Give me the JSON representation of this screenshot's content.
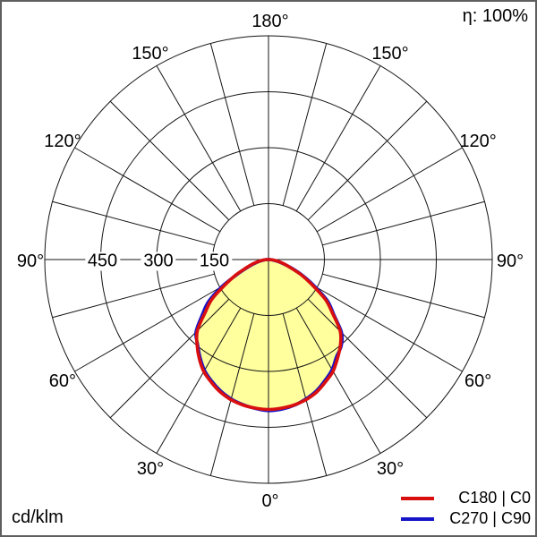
{
  "meta": {
    "efficiency_label": "η: 100%",
    "unit_label": "cd/klm"
  },
  "legend": [
    {
      "label": "C180 | C0",
      "color": "#d90f0f"
    },
    {
      "label": "C270 | C90",
      "color": "#1414c8"
    }
  ],
  "chart_data": {
    "type": "line",
    "subtype": "polar-photometric-distribution",
    "unit": "cd/klm",
    "efficiency_percent": 100,
    "grid": {
      "spoke_step_deg": 15,
      "rings": [
        150,
        300,
        450,
        600
      ],
      "grid_color": "#141414"
    },
    "radial_ticks": [
      {
        "value": 150,
        "label": "150"
      },
      {
        "value": 300,
        "label": "300"
      },
      {
        "value": 450,
        "label": "450"
      }
    ],
    "radial_max": 600,
    "angle_labels": [
      {
        "deg": 0,
        "label": "0°"
      },
      {
        "deg": 30,
        "label": "30°"
      },
      {
        "deg": 60,
        "label": "60°"
      },
      {
        "deg": 90,
        "label": "90°"
      },
      {
        "deg": 120,
        "label": "120°"
      },
      {
        "deg": 150,
        "label": "150°"
      },
      {
        "deg": 180,
        "label": "180°"
      }
    ],
    "fill_color": "#ffff9e",
    "gamma_deg": [
      -90,
      -85,
      -80,
      -75,
      -70,
      -65,
      -60,
      -55,
      -50,
      -45,
      -40,
      -35,
      -30,
      -25,
      -20,
      -15,
      -10,
      -5,
      0,
      5,
      10,
      15,
      20,
      25,
      30,
      35,
      40,
      45,
      50,
      55,
      60,
      65,
      70,
      75,
      80,
      85,
      90
    ],
    "series": [
      {
        "name": "C180 | C0",
        "color": "#d90f0f",
        "values": [
          5,
          14,
          26,
          42,
          62,
          95,
          133,
          185,
          222,
          270,
          298,
          324,
          347,
          363,
          378,
          389,
          396,
          400,
          402,
          400,
          396,
          389,
          378,
          362,
          346,
          323,
          300,
          272,
          224,
          186,
          134,
          96,
          61,
          41,
          25,
          13,
          5
        ]
      },
      {
        "name": "C270 | C90",
        "color": "#1414c8",
        "values": [
          4,
          11,
          22,
          37,
          58,
          90,
          143,
          196,
          232,
          275,
          296,
          320,
          343,
          360,
          375,
          387,
          395,
          401,
          405,
          403,
          397,
          387,
          375,
          358,
          341,
          318,
          303,
          277,
          228,
          193,
          142,
          101,
          64,
          38,
          21,
          9,
          4
        ]
      }
    ]
  }
}
